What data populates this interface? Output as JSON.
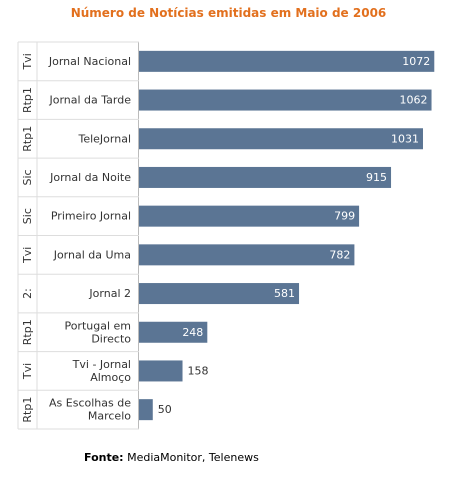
{
  "chart_data": {
    "type": "bar",
    "orientation": "horizontal",
    "title": "Número de Notícias emitidas em Maio de 2006",
    "categories": [
      {
        "group": "Tvi",
        "label": [
          "Jornal Nacional"
        ]
      },
      {
        "group": "Rtp1",
        "label": [
          "Jornal da Tarde"
        ]
      },
      {
        "group": "Rtp1",
        "label": [
          "TeleJornal"
        ]
      },
      {
        "group": "Sic",
        "label": [
          "Jornal da Noite"
        ]
      },
      {
        "group": "Sic",
        "label": [
          "Primeiro Jornal"
        ]
      },
      {
        "group": "Tvi",
        "label": [
          "Jornal da Uma"
        ]
      },
      {
        "group": "2:",
        "label": [
          "Jornal 2"
        ]
      },
      {
        "group": "Rtp1",
        "label": [
          "Portugal em",
          "Directo"
        ]
      },
      {
        "group": "Tvi",
        "label": [
          "Tvi - Jornal",
          "Almoço"
        ]
      },
      {
        "group": "Rtp1",
        "label": [
          "As Escolhas de",
          "Marcelo"
        ]
      }
    ],
    "values": [
      1072,
      1062,
      1031,
      915,
      799,
      782,
      581,
      248,
      158,
      50
    ],
    "xlim": [
      0,
      1100
    ],
    "grid": false,
    "legend": false
  },
  "colors": {
    "bar": "#5b7594",
    "title": "#e2701e",
    "label": "#333333",
    "value_inside": "#ffffff",
    "value_outside": "#333333",
    "separator": "#dddddd"
  },
  "footer": {
    "source_label": "Fonte:",
    "source_text": "MediaMonitor, Telenews"
  }
}
